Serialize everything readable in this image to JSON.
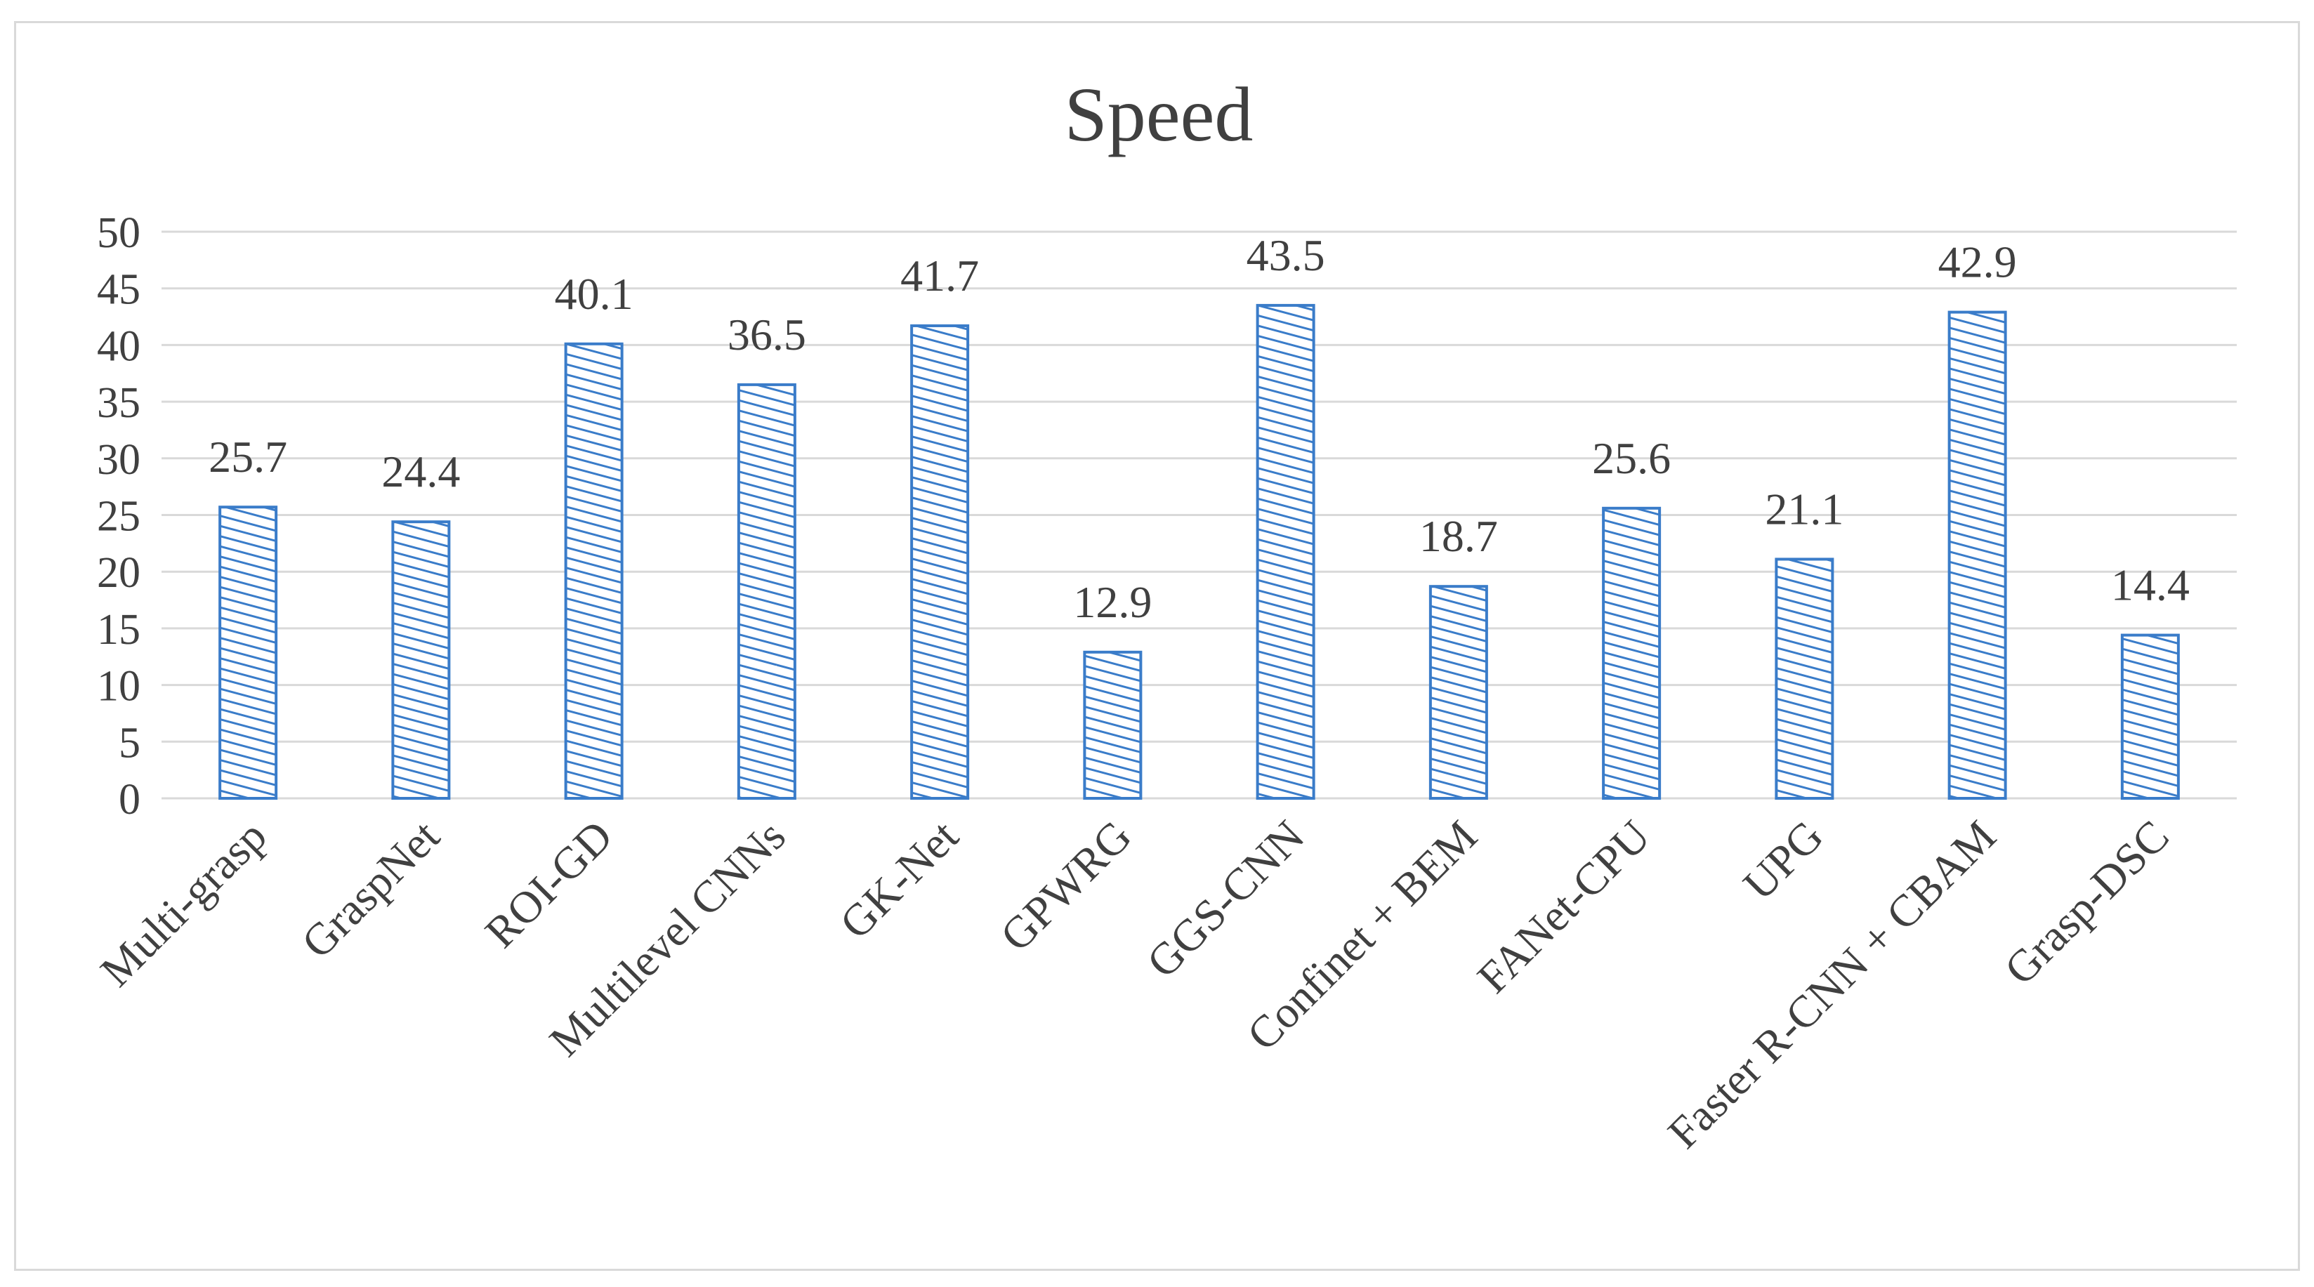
{
  "chart_data": {
    "type": "bar",
    "title": "Speed",
    "xlabel": "",
    "ylabel": "",
    "ylim": [
      0,
      50
    ],
    "yticks": [
      0,
      5,
      10,
      15,
      20,
      25,
      30,
      35,
      40,
      45,
      50
    ],
    "grid": true,
    "legend": "none",
    "bar_color": "#3a7cc9",
    "categories": [
      "Multi-grasp",
      "GraspNet",
      "ROI-GD",
      "Multilevel CNNs",
      "GK-Net",
      "GPWRG",
      "GGS-CNN",
      "Confinet + BEM",
      "FANet-CPU",
      "UPG",
      "Faster R-CNN + CBAM",
      "Grasp-DSC"
    ],
    "values": [
      25.7,
      24.4,
      40.1,
      36.5,
      41.7,
      12.9,
      43.5,
      18.7,
      25.6,
      21.1,
      42.9,
      14.4
    ],
    "data_labels": [
      "25.7",
      "24.4",
      "40.1",
      "36.5",
      "41.7",
      "12.9",
      "43.5",
      "18.7",
      "25.6",
      "21.1",
      "42.9",
      "14.4"
    ]
  }
}
